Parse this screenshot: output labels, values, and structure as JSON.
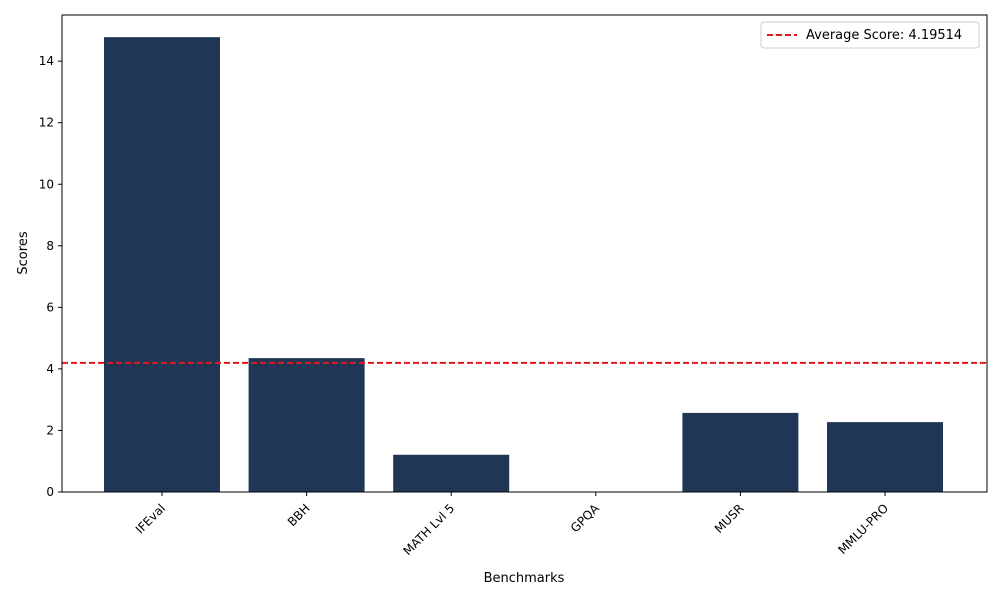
{
  "chart_data": {
    "type": "bar",
    "categories": [
      "IFEval",
      "BBH",
      "MATH Lvl 5",
      "GPQA",
      "MUSR",
      "MMLU-PRO"
    ],
    "values": [
      14.78,
      4.35,
      1.21,
      0.0,
      2.57,
      2.27
    ],
    "xlabel": "Benchmarks",
    "ylabel": "Scores",
    "ylim": [
      0,
      15.5
    ],
    "yticks": [
      0,
      2,
      4,
      6,
      8,
      10,
      12,
      14
    ],
    "grid": false,
    "bar_color": "#1f3657",
    "average_line": {
      "value": 4.19514,
      "label": "Average Score: 4.19514",
      "color": "#e31a1c",
      "style": "dashed"
    },
    "legend_position": "top-right"
  }
}
